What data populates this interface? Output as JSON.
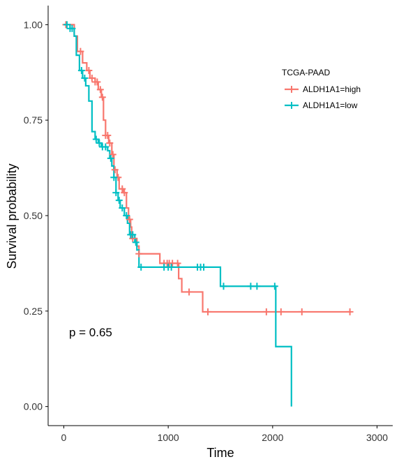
{
  "chart_data": {
    "type": "line",
    "subtype": "kaplan-meier",
    "xlabel": "Time",
    "ylabel": "Survival probability",
    "xlim": [
      -150,
      3150
    ],
    "ylim": [
      -0.05,
      1.05
    ],
    "x_ticks": [
      0,
      1000,
      2000,
      3000
    ],
    "y_ticks": [
      0.0,
      0.25,
      0.5,
      0.75,
      1.0
    ],
    "y_tick_labels": [
      "0.00",
      "0.25",
      "0.50",
      "0.75",
      "1.00"
    ],
    "grid": false,
    "legend": {
      "title": "TCGA-PAAD",
      "placement": "top-right"
    },
    "annotation": "p = 0.65",
    "annotation_at": [
      50,
      0.195
    ],
    "series": [
      {
        "name": "ALDH1A1=high",
        "color": "#F8766D",
        "steps": [
          [
            0,
            1.0
          ],
          [
            100,
            0.97
          ],
          [
            130,
            0.93
          ],
          [
            180,
            0.9
          ],
          [
            220,
            0.88
          ],
          [
            250,
            0.86
          ],
          [
            300,
            0.85
          ],
          [
            330,
            0.83
          ],
          [
            360,
            0.81
          ],
          [
            380,
            0.75
          ],
          [
            400,
            0.71
          ],
          [
            430,
            0.69
          ],
          [
            460,
            0.66
          ],
          [
            480,
            0.62
          ],
          [
            510,
            0.6
          ],
          [
            530,
            0.57
          ],
          [
            570,
            0.56
          ],
          [
            600,
            0.52
          ],
          [
            620,
            0.49
          ],
          [
            640,
            0.47
          ],
          [
            650,
            0.44
          ],
          [
            700,
            0.42
          ],
          [
            720,
            0.4
          ],
          [
            920,
            0.375
          ],
          [
            1100,
            0.335
          ],
          [
            1130,
            0.3
          ],
          [
            1330,
            0.248
          ],
          [
            2750,
            0.248
          ]
        ],
        "censor_x": [
          20,
          160,
          240,
          270,
          300,
          320,
          350,
          370,
          400,
          420,
          440,
          470,
          490,
          520,
          560,
          580,
          630,
          660,
          720,
          960,
          990,
          1010,
          1040,
          1090,
          1200,
          1380,
          1940,
          2080,
          2280,
          2740
        ]
      },
      {
        "name": "ALDH1A1=low",
        "color": "#00BFC4",
        "steps": [
          [
            0,
            1.0
          ],
          [
            60,
            0.99
          ],
          [
            100,
            0.97
          ],
          [
            120,
            0.92
          ],
          [
            150,
            0.88
          ],
          [
            180,
            0.86
          ],
          [
            210,
            0.84
          ],
          [
            240,
            0.8
          ],
          [
            270,
            0.72
          ],
          [
            300,
            0.7
          ],
          [
            330,
            0.69
          ],
          [
            360,
            0.68
          ],
          [
            420,
            0.67
          ],
          [
            440,
            0.65
          ],
          [
            460,
            0.63
          ],
          [
            480,
            0.6
          ],
          [
            500,
            0.56
          ],
          [
            520,
            0.54
          ],
          [
            540,
            0.52
          ],
          [
            580,
            0.5
          ],
          [
            610,
            0.48
          ],
          [
            630,
            0.45
          ],
          [
            680,
            0.43
          ],
          [
            700,
            0.41
          ],
          [
            720,
            0.365
          ],
          [
            1500,
            0.315
          ],
          [
            2030,
            0.157
          ],
          [
            2180,
            0.0
          ]
        ],
        "censor_x": [
          30,
          60,
          80,
          170,
          200,
          310,
          340,
          370,
          400,
          450,
          480,
          500,
          530,
          560,
          600,
          640,
          660,
          690,
          740,
          960,
          1000,
          1030,
          1280,
          1310,
          1340,
          1530,
          1790,
          1850,
          2020
        ]
      }
    ]
  }
}
